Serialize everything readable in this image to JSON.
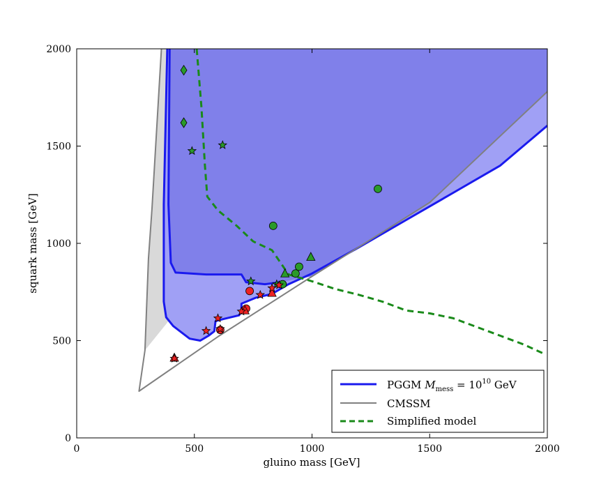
{
  "chart_data": {
    "type": "line",
    "xlabel": "gluino mass [GeV]",
    "ylabel": "squark mass [GeV]",
    "xlim": [
      0,
      2000
    ],
    "ylim": [
      0,
      2000
    ],
    "xticks": [
      0,
      500,
      1000,
      1500,
      2000
    ],
    "yticks": [
      0,
      500,
      1000,
      1500,
      2000
    ],
    "legend_position": "bottom-right",
    "colors": {
      "pggm": "#1a1aee",
      "pggm_fill_dark": "#8080ea",
      "pggm_fill_light": "#a0a0f5",
      "cmssm": "#808080",
      "cmssm_fill": "#d8d8d8",
      "simplified": "#1a8a1a",
      "green_markers": "#2a9a2a",
      "red_markers": "#ee2222"
    },
    "series": [
      {
        "id": "pggm",
        "legend_prefix": "PGGM ",
        "legend_math": "M",
        "legend_sub": "mess",
        "legend_mid": " = 10",
        "legend_sup": "10",
        "legend_suffix": " GeV",
        "style": "solid-blue",
        "points": [
          [
            385,
            2000
          ],
          [
            370,
            1200
          ],
          [
            370,
            700
          ],
          [
            380,
            620
          ],
          [
            410,
            575
          ],
          [
            480,
            510
          ],
          [
            525,
            500
          ],
          [
            560,
            525
          ],
          [
            585,
            548
          ],
          [
            590,
            600
          ],
          [
            620,
            610
          ],
          [
            690,
            630
          ],
          [
            700,
            650
          ],
          [
            700,
            690
          ],
          [
            720,
            700
          ],
          [
            760,
            720
          ],
          [
            830,
            740
          ],
          [
            900,
            790
          ],
          [
            1000,
            845
          ],
          [
            1200,
            980
          ],
          [
            1400,
            1120
          ],
          [
            1600,
            1260
          ],
          [
            1800,
            1400
          ],
          [
            2000,
            1605
          ]
        ]
      },
      {
        "id": "pggm_upper",
        "style": "solid-blue",
        "points": [
          [
            395,
            2000
          ],
          [
            390,
            1200
          ],
          [
            400,
            900
          ],
          [
            420,
            850
          ],
          [
            550,
            840
          ],
          [
            700,
            840
          ],
          [
            720,
            800
          ],
          [
            800,
            790
          ],
          [
            860,
            800
          ]
        ]
      },
      {
        "id": "cmssm",
        "legend": "CMSSM",
        "style": "solid-grey",
        "points": [
          [
            360,
            2000
          ],
          [
            320,
            1180
          ],
          [
            305,
            920
          ],
          [
            290,
            450
          ],
          [
            265,
            240
          ],
          [
            600,
            520
          ],
          [
            1000,
            830
          ],
          [
            1500,
            1210
          ],
          [
            2000,
            1780
          ]
        ]
      },
      {
        "id": "simplified",
        "legend": "Simplified model",
        "style": "dashed-green",
        "points": [
          [
            510,
            2000
          ],
          [
            530,
            1700
          ],
          [
            545,
            1400
          ],
          [
            555,
            1240
          ],
          [
            600,
            1170
          ],
          [
            680,
            1090
          ],
          [
            750,
            1010
          ],
          [
            830,
            965
          ],
          [
            900,
            840
          ],
          [
            1000,
            805
          ],
          [
            1100,
            765
          ],
          [
            1200,
            735
          ],
          [
            1300,
            700
          ],
          [
            1400,
            655
          ],
          [
            1500,
            640
          ],
          [
            1600,
            615
          ],
          [
            1700,
            570
          ],
          [
            1800,
            525
          ],
          [
            1900,
            480
          ],
          [
            1990,
            430
          ]
        ]
      }
    ],
    "markers": [
      {
        "shape": "diamond",
        "color": "green",
        "x": 455,
        "y": 1890
      },
      {
        "shape": "diamond",
        "color": "green",
        "x": 455,
        "y": 1620
      },
      {
        "shape": "star",
        "color": "green",
        "x": 490,
        "y": 1475
      },
      {
        "shape": "star",
        "color": "green",
        "x": 620,
        "y": 1505
      },
      {
        "shape": "circle",
        "color": "green",
        "x": 1280,
        "y": 1280
      },
      {
        "shape": "circle",
        "color": "green",
        "x": 835,
        "y": 1090
      },
      {
        "shape": "triangle",
        "color": "green",
        "x": 995,
        "y": 930
      },
      {
        "shape": "circle",
        "color": "green",
        "x": 945,
        "y": 880
      },
      {
        "shape": "circle",
        "color": "green",
        "x": 930,
        "y": 845
      },
      {
        "shape": "triangle",
        "color": "green",
        "x": 885,
        "y": 845
      },
      {
        "shape": "circle",
        "color": "green",
        "x": 875,
        "y": 790
      },
      {
        "shape": "star",
        "color": "green",
        "x": 740,
        "y": 805
      },
      {
        "shape": "star",
        "color": "green",
        "x": 850,
        "y": 790
      },
      {
        "shape": "circle",
        "color": "red",
        "x": 735,
        "y": 755
      },
      {
        "shape": "star",
        "color": "red",
        "x": 780,
        "y": 735
      },
      {
        "shape": "triangle",
        "color": "red",
        "x": 830,
        "y": 745
      },
      {
        "shape": "star",
        "color": "red",
        "x": 830,
        "y": 770
      },
      {
        "shape": "star",
        "color": "red",
        "x": 860,
        "y": 785
      },
      {
        "shape": "circle",
        "color": "red",
        "x": 720,
        "y": 665
      },
      {
        "shape": "triangle",
        "color": "red",
        "x": 715,
        "y": 655
      },
      {
        "shape": "star",
        "color": "red",
        "x": 700,
        "y": 650
      },
      {
        "shape": "star",
        "color": "red",
        "x": 600,
        "y": 615
      },
      {
        "shape": "star",
        "color": "red",
        "x": 550,
        "y": 550
      },
      {
        "shape": "circle",
        "color": "red",
        "x": 610,
        "y": 555
      },
      {
        "shape": "star",
        "color": "red",
        "x": 610,
        "y": 560
      },
      {
        "shape": "triangle",
        "color": "red",
        "x": 415,
        "y": 412
      },
      {
        "shape": "star",
        "color": "red",
        "x": 415,
        "y": 408
      }
    ]
  }
}
